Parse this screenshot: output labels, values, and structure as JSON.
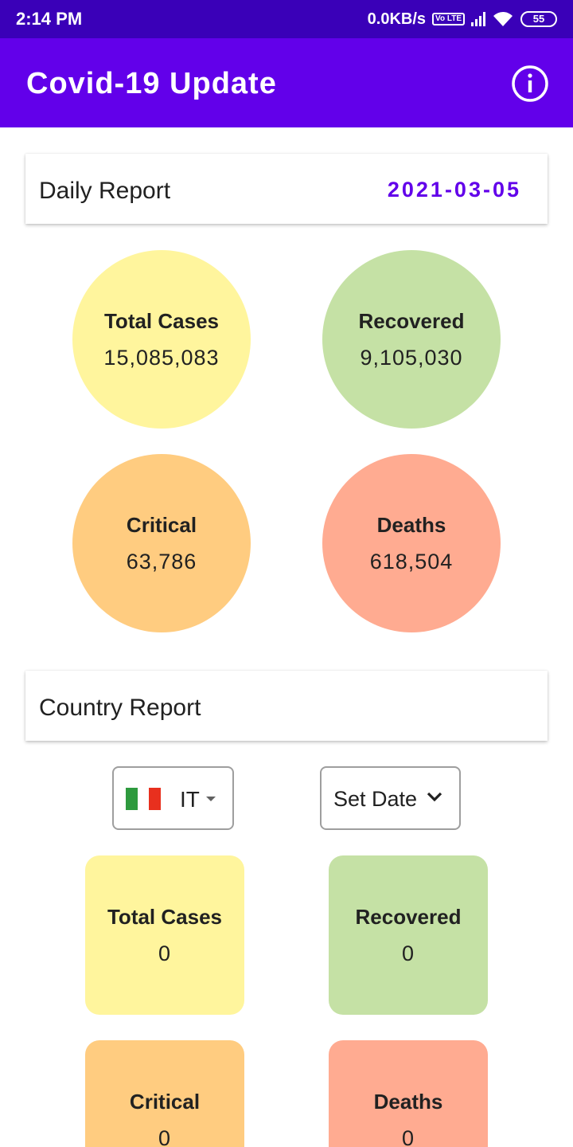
{
  "status_bar": {
    "time": "2:14 PM",
    "network_speed": "0.0KB/s",
    "volte": "Vo LTE",
    "battery": "55"
  },
  "app_bar": {
    "title": "Covid-19 Update",
    "info_icon": "info-circle-icon"
  },
  "daily_report": {
    "label": "Daily Report",
    "date": "2021-03-05",
    "stats": [
      {
        "label": "Total Cases",
        "value": "15,085,083",
        "color": "#fff59d"
      },
      {
        "label": "Recovered",
        "value": "9,105,030",
        "color": "#c5e1a5"
      },
      {
        "label": "Critical",
        "value": "63,786",
        "color": "#ffcc80"
      },
      {
        "label": "Deaths",
        "value": "618,504",
        "color": "#ffab91"
      }
    ]
  },
  "country_report": {
    "label": "Country Report",
    "country_code": "IT",
    "set_date_label": "Set Date",
    "stats": [
      {
        "label": "Total Cases",
        "value": "0",
        "color": "#fff59d"
      },
      {
        "label": "Recovered",
        "value": "0",
        "color": "#c5e1a5"
      },
      {
        "label": "Critical",
        "value": "0",
        "color": "#ffcc80"
      },
      {
        "label": "Deaths",
        "value": "0",
        "color": "#ffab91"
      }
    ]
  },
  "colors": {
    "status_bar": "#3a00b8",
    "app_bar": "#6200ea",
    "date_accent": "#6200ea"
  }
}
